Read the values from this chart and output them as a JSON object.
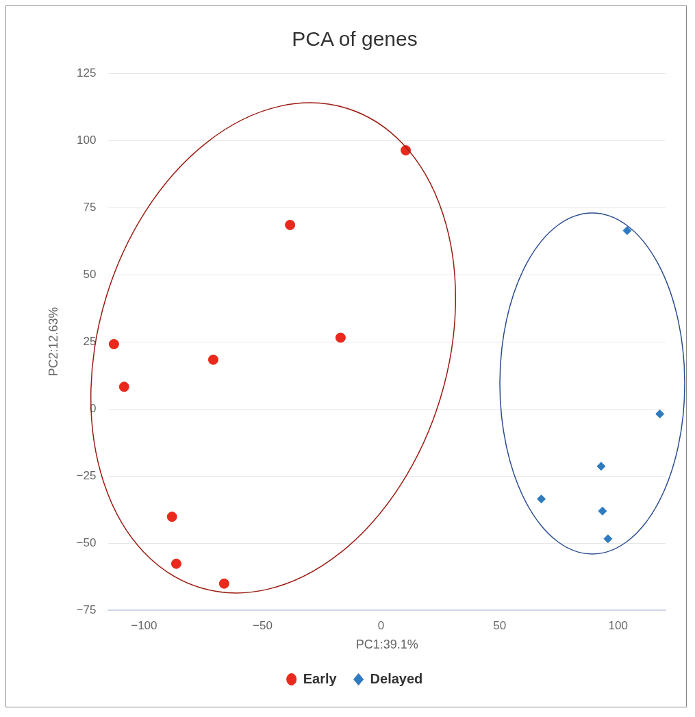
{
  "chart_data": {
    "type": "scatter",
    "title": "PCA of genes",
    "xlabel": "PC1:39.1%",
    "ylabel": "PC2:12.63%",
    "xlim": [
      -115,
      120
    ],
    "xticks": [
      -100,
      -50,
      0,
      50,
      100
    ],
    "ylim": [
      -75,
      125
    ],
    "yticks": [
      -75,
      -50,
      -25,
      0,
      25,
      50,
      75,
      100,
      125
    ],
    "grid": "y",
    "legend": "bottom",
    "series": [
      {
        "name": "Early",
        "color": "#e8291c",
        "marker": "circle",
        "x": [
          10.4,
          -38.4,
          -17.1,
          -70.8,
          -112.7,
          -108.4,
          -88.2,
          -86.4,
          -66.2
        ],
        "values": [
          96.3,
          68.5,
          26.5,
          18.3,
          24.1,
          8.2,
          -40.2,
          -57.7,
          -65.1
        ]
      },
      {
        "name": "Delayed",
        "color": "#2f7bbf",
        "marker": "diamond",
        "x": [
          103.8,
          117.6,
          92.8,
          67.6,
          93.4,
          95.7
        ],
        "values": [
          66.4,
          -1.9,
          -21.4,
          -33.6,
          -38.1,
          -48.4
        ]
      }
    ]
  }
}
